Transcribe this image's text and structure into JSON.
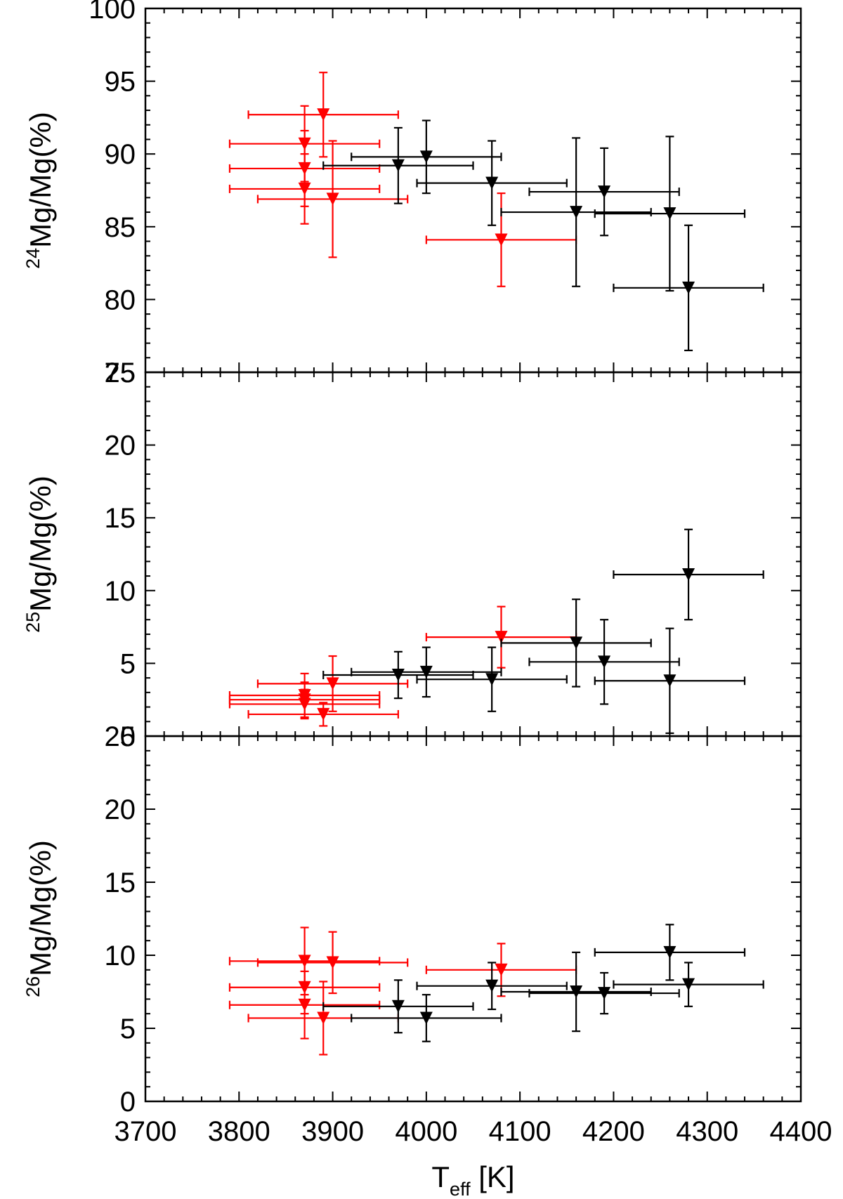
{
  "figure": {
    "xlabel": {
      "main": "T",
      "sub": "eff",
      "rest": " [K]"
    },
    "xlim": [
      3700,
      4400
    ],
    "x_tick_values": [
      3700,
      3800,
      3900,
      4000,
      4100,
      4200,
      4300,
      4400
    ],
    "x_tick_labels": [
      "3700",
      "3800",
      "3900",
      "4000",
      "4100",
      "4200",
      "4300",
      "4400"
    ],
    "colors": {
      "red_group": "#ff0000",
      "black_group": "#000000",
      "axes": "#000000"
    },
    "marker": "down-triangle"
  },
  "chart_data": [
    {
      "type": "scatter",
      "panel": "top",
      "ylabel": {
        "sup": "24",
        "text": "Mg/Mg(%)"
      },
      "ylim": [
        75,
        100
      ],
      "y_tick_values": [
        75,
        80,
        85,
        90,
        95,
        100
      ],
      "y_tick_labels": [
        "75",
        "80",
        "85",
        "90",
        "95",
        "100"
      ],
      "series": [
        {
          "name": "red",
          "color": "#ff0000",
          "points": [
            {
              "x": 3870,
              "y": 90.7,
              "xerr": 80,
              "yerr": 2.6
            },
            {
              "x": 3870,
              "y": 89.0,
              "xerr": 80,
              "yerr": 2.6
            },
            {
              "x": 3870,
              "y": 87.6,
              "xerr": 80,
              "yerr": 2.4
            },
            {
              "x": 3890,
              "y": 92.7,
              "xerr": 80,
              "yerr": 2.9
            },
            {
              "x": 3900,
              "y": 86.9,
              "xerr": 80,
              "yerr": 4.0
            },
            {
              "x": 4080,
              "y": 84.1,
              "xerr": 80,
              "yerr": 3.2
            }
          ]
        },
        {
          "name": "black",
          "color": "#000000",
          "points": [
            {
              "x": 3970,
              "y": 89.2,
              "xerr": 80,
              "yerr": 2.6
            },
            {
              "x": 4000,
              "y": 89.8,
              "xerr": 80,
              "yerr": 2.5
            },
            {
              "x": 4070,
              "y": 88.0,
              "xerr": 80,
              "yerr": 2.9
            },
            {
              "x": 4160,
              "y": 86.0,
              "xerr": 80,
              "yerr": 5.1
            },
            {
              "x": 4190,
              "y": 87.4,
              "xerr": 80,
              "yerr": 3.0
            },
            {
              "x": 4260,
              "y": 85.9,
              "xerr": 80,
              "yerr": 5.3
            },
            {
              "x": 4280,
              "y": 80.8,
              "xerr": 80,
              "yerr": 4.3
            }
          ]
        }
      ]
    },
    {
      "type": "scatter",
      "panel": "middle",
      "ylabel": {
        "sup": "25",
        "text": "Mg/Mg(%)"
      },
      "ylim": [
        0,
        25
      ],
      "y_tick_values": [
        0,
        5,
        10,
        15,
        20,
        25
      ],
      "y_tick_labels": [
        "0",
        "5",
        "10",
        "15",
        "20",
        "25"
      ],
      "series": [
        {
          "name": "red",
          "color": "#ff0000",
          "points": [
            {
              "x": 3870,
              "y": 2.8,
              "xerr": 80,
              "yerr": 1.5
            },
            {
              "x": 3870,
              "y": 2.5,
              "xerr": 80,
              "yerr": 1.2
            },
            {
              "x": 3870,
              "y": 2.2,
              "xerr": 80,
              "yerr": 1.0
            },
            {
              "x": 3890,
              "y": 1.5,
              "xerr": 80,
              "yerr": 0.8
            },
            {
              "x": 3900,
              "y": 3.6,
              "xerr": 80,
              "yerr": 1.9
            },
            {
              "x": 4080,
              "y": 6.8,
              "xerr": 80,
              "yerr": 2.1
            }
          ]
        },
        {
          "name": "black",
          "color": "#000000",
          "points": [
            {
              "x": 3970,
              "y": 4.2,
              "xerr": 80,
              "yerr": 1.6
            },
            {
              "x": 4000,
              "y": 4.4,
              "xerr": 80,
              "yerr": 1.7
            },
            {
              "x": 4070,
              "y": 3.9,
              "xerr": 80,
              "yerr": 2.2
            },
            {
              "x": 4160,
              "y": 6.4,
              "xerr": 80,
              "yerr": 3.0
            },
            {
              "x": 4190,
              "y": 5.1,
              "xerr": 80,
              "yerr": 2.9
            },
            {
              "x": 4260,
              "y": 3.8,
              "xerr": 80,
              "yerr": 3.6
            },
            {
              "x": 4280,
              "y": 11.1,
              "xerr": 80,
              "yerr": 3.1
            }
          ]
        }
      ]
    },
    {
      "type": "scatter",
      "panel": "bottom",
      "ylabel": {
        "sup": "26",
        "text": "Mg/Mg(%)"
      },
      "ylim": [
        0,
        25
      ],
      "y_tick_values": [
        0,
        5,
        10,
        15,
        20,
        25
      ],
      "y_tick_labels": [
        "0",
        "5",
        "10",
        "15",
        "20",
        "25"
      ],
      "series": [
        {
          "name": "red",
          "color": "#ff0000",
          "points": [
            {
              "x": 3870,
              "y": 9.6,
              "xerr": 80,
              "yerr": 2.3
            },
            {
              "x": 3870,
              "y": 7.8,
              "xerr": 80,
              "yerr": 1.8
            },
            {
              "x": 3870,
              "y": 6.6,
              "xerr": 80,
              "yerr": 2.3
            },
            {
              "x": 3890,
              "y": 5.7,
              "xerr": 80,
              "yerr": 2.5
            },
            {
              "x": 3900,
              "y": 9.5,
              "xerr": 80,
              "yerr": 2.1
            },
            {
              "x": 4080,
              "y": 9.0,
              "xerr": 80,
              "yerr": 1.8
            }
          ]
        },
        {
          "name": "black",
          "color": "#000000",
          "points": [
            {
              "x": 3970,
              "y": 6.5,
              "xerr": 80,
              "yerr": 1.8
            },
            {
              "x": 4000,
              "y": 5.7,
              "xerr": 80,
              "yerr": 1.6
            },
            {
              "x": 4070,
              "y": 7.9,
              "xerr": 80,
              "yerr": 1.6
            },
            {
              "x": 4160,
              "y": 7.5,
              "xerr": 80,
              "yerr": 2.7
            },
            {
              "x": 4190,
              "y": 7.4,
              "xerr": 80,
              "yerr": 1.4
            },
            {
              "x": 4260,
              "y": 10.2,
              "xerr": 80,
              "yerr": 1.9
            },
            {
              "x": 4280,
              "y": 8.0,
              "xerr": 80,
              "yerr": 1.5
            }
          ]
        }
      ]
    }
  ]
}
